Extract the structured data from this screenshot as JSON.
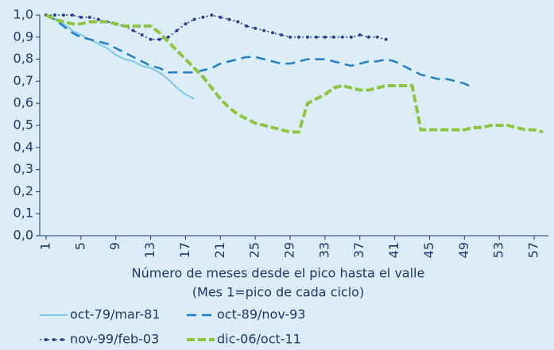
{
  "chart_data": {
    "type": "line",
    "xlabel": [
      "Número de meses desde el pico hasta el valle",
      "(Mes 1=pico de cada ciclo)"
    ],
    "x": [
      1,
      2,
      3,
      4,
      5,
      6,
      7,
      8,
      9,
      10,
      11,
      12,
      13,
      14,
      15,
      16,
      17,
      18,
      19,
      20,
      21,
      22,
      23,
      24,
      25,
      26,
      27,
      28,
      29,
      30,
      31,
      32,
      33,
      34,
      35,
      36,
      37,
      38,
      39,
      40,
      41,
      42,
      43,
      44,
      45,
      46,
      47,
      48,
      49,
      50,
      51,
      52,
      53,
      54,
      55,
      56,
      57,
      58
    ],
    "xlim": [
      1,
      58
    ],
    "xticks": [
      1,
      5,
      9,
      13,
      17,
      21,
      25,
      29,
      33,
      37,
      41,
      45,
      49,
      53,
      57
    ],
    "ylim": [
      0,
      1
    ],
    "yticks": [
      {
        "value": 0,
        "label": "0,0"
      },
      {
        "value": 0.1,
        "label": "0,1"
      },
      {
        "value": 0.2,
        "label": "0,2"
      },
      {
        "value": 0.3,
        "label": "0,3"
      },
      {
        "value": 0.4,
        "label": "0,4"
      },
      {
        "value": 0.5,
        "label": "0,5"
      },
      {
        "value": 0.6,
        "label": "0,6"
      },
      {
        "value": 0.7,
        "label": "0,7"
      },
      {
        "value": 0.8,
        "label": "0,8"
      },
      {
        "value": 0.9,
        "label": "0,9"
      },
      {
        "value": 1,
        "label": "1,0"
      }
    ],
    "series": [
      {
        "name": "oct-79/mar-81",
        "color": "#7cc6ea",
        "style": "solid",
        "values": [
          1.0,
          0.98,
          0.96,
          0.93,
          0.91,
          0.89,
          0.87,
          0.85,
          0.82,
          0.8,
          0.79,
          0.77,
          0.76,
          0.74,
          0.71,
          0.67,
          0.64,
          0.62,
          null,
          null,
          null,
          null,
          null,
          null,
          null,
          null,
          null,
          null,
          null,
          null,
          null,
          null,
          null,
          null,
          null,
          null,
          null,
          null,
          null,
          null,
          null,
          null,
          null,
          null,
          null,
          null,
          null,
          null,
          null,
          null,
          null,
          null,
          null,
          null,
          null,
          null,
          null,
          null
        ]
      },
      {
        "name": "oct-89/nov-93",
        "color": "#1f7fc6",
        "style": "dashed",
        "values": [
          1.0,
          0.98,
          0.95,
          0.92,
          0.9,
          0.89,
          0.88,
          0.87,
          0.85,
          0.83,
          0.81,
          0.79,
          0.77,
          0.76,
          0.74,
          0.74,
          0.74,
          0.74,
          0.75,
          0.76,
          0.78,
          0.79,
          0.8,
          0.81,
          0.81,
          0.8,
          0.79,
          0.78,
          0.78,
          0.79,
          0.8,
          0.8,
          0.8,
          0.79,
          0.78,
          0.77,
          0.78,
          0.79,
          0.79,
          0.8,
          0.79,
          0.77,
          0.75,
          0.73,
          0.72,
          0.71,
          0.71,
          0.7,
          0.69,
          0.67,
          null,
          null,
          null,
          null,
          null,
          null,
          null,
          null
        ]
      },
      {
        "name": "nov-99/feb-03",
        "color": "#2b3f8f",
        "style": "dotted",
        "values": [
          1.0,
          1.0,
          1.0,
          1.0,
          0.99,
          0.99,
          0.98,
          0.97,
          0.96,
          0.95,
          0.93,
          0.91,
          0.89,
          0.89,
          0.9,
          0.93,
          0.96,
          0.98,
          0.99,
          1.0,
          0.99,
          0.98,
          0.97,
          0.95,
          0.94,
          0.93,
          0.92,
          0.91,
          0.9,
          0.9,
          0.9,
          0.9,
          0.9,
          0.9,
          0.9,
          0.9,
          0.91,
          0.9,
          0.9,
          0.89,
          null,
          null,
          null,
          null,
          null,
          null,
          null,
          null,
          null,
          null,
          null,
          null,
          null,
          null,
          null,
          null,
          null,
          null
        ]
      },
      {
        "name": "dic-06/oct-11",
        "color": "#8cc63f",
        "style": "dashed-thick",
        "values": [
          1.0,
          0.98,
          0.97,
          0.96,
          0.96,
          0.97,
          0.97,
          0.97,
          0.96,
          0.95,
          0.95,
          0.95,
          0.95,
          0.92,
          0.88,
          0.84,
          0.8,
          0.76,
          0.72,
          0.67,
          0.62,
          0.58,
          0.55,
          0.53,
          0.51,
          0.5,
          0.49,
          0.48,
          0.47,
          0.47,
          0.6,
          0.62,
          0.64,
          0.67,
          0.68,
          0.67,
          0.66,
          0.66,
          0.67,
          0.68,
          0.68,
          0.68,
          0.68,
          0.48,
          0.48,
          0.48,
          0.48,
          0.48,
          0.48,
          0.49,
          0.49,
          0.5,
          0.5,
          0.5,
          0.49,
          0.48,
          0.48,
          0.47
        ]
      }
    ]
  }
}
